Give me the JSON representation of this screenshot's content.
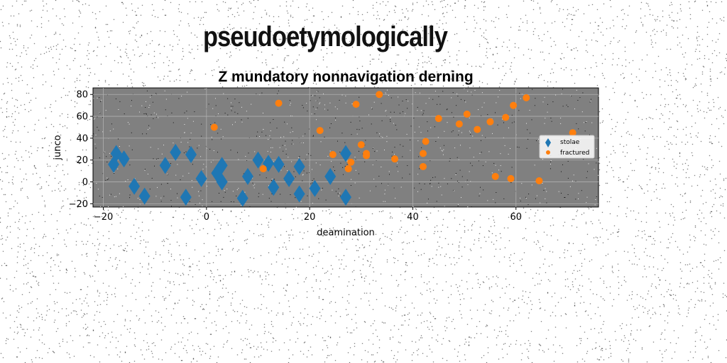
{
  "figure_title": "pseudoetymologically",
  "chart_data": {
    "type": "scatter",
    "title": "Z mundatory nonnavigation derning",
    "xlabel": "deamination",
    "ylabel": "junco",
    "xlim": [
      -22,
      76
    ],
    "ylim": [
      -23,
      86
    ],
    "xticks": [
      -20,
      0,
      20,
      40,
      60
    ],
    "yticks": [
      -20,
      0,
      20,
      40,
      60,
      80
    ],
    "grid": true,
    "legend_position": "right",
    "plot_background": "#808080",
    "series": [
      {
        "name": "stolae",
        "marker": "diamond",
        "color": "#1f77b4",
        "points": [
          {
            "x": -17.5,
            "y": 26
          },
          {
            "x": -18,
            "y": 16
          },
          {
            "x": -16,
            "y": 21
          },
          {
            "x": -14,
            "y": -4
          },
          {
            "x": -12,
            "y": -13
          },
          {
            "x": -8,
            "y": 15
          },
          {
            "x": -6,
            "y": 27
          },
          {
            "x": -4,
            "y": -14
          },
          {
            "x": -3,
            "y": 25
          },
          {
            "x": -1,
            "y": 3
          },
          {
            "x": 2,
            "y": 8
          },
          {
            "x": 3,
            "y": 15
          },
          {
            "x": 3,
            "y": 0
          },
          {
            "x": 7,
            "y": -15
          },
          {
            "x": 8,
            "y": 5
          },
          {
            "x": 10,
            "y": 20
          },
          {
            "x": 12,
            "y": 17
          },
          {
            "x": 13,
            "y": -5
          },
          {
            "x": 14,
            "y": 16
          },
          {
            "x": 16,
            "y": 3
          },
          {
            "x": 18,
            "y": 14
          },
          {
            "x": 18,
            "y": -11
          },
          {
            "x": 21,
            "y": -6
          },
          {
            "x": 24,
            "y": 5
          },
          {
            "x": 27,
            "y": 26
          },
          {
            "x": 27,
            "y": -14
          }
        ]
      },
      {
        "name": "fractured",
        "marker": "circle",
        "color": "#ff7f0e",
        "points": [
          {
            "x": 1.5,
            "y": 50
          },
          {
            "x": 11,
            "y": 12
          },
          {
            "x": 14,
            "y": 72
          },
          {
            "x": 22,
            "y": 47
          },
          {
            "x": 24.5,
            "y": 25
          },
          {
            "x": 27.5,
            "y": 12
          },
          {
            "x": 28,
            "y": 18
          },
          {
            "x": 29,
            "y": 71
          },
          {
            "x": 30,
            "y": 34
          },
          {
            "x": 31,
            "y": 24
          },
          {
            "x": 31,
            "y": 26
          },
          {
            "x": 33.5,
            "y": 80
          },
          {
            "x": 36.5,
            "y": 21
          },
          {
            "x": 42,
            "y": 26
          },
          {
            "x": 42,
            "y": 14
          },
          {
            "x": 42.5,
            "y": 37
          },
          {
            "x": 45,
            "y": 58
          },
          {
            "x": 49,
            "y": 53
          },
          {
            "x": 50.5,
            "y": 62
          },
          {
            "x": 52.5,
            "y": 48
          },
          {
            "x": 55,
            "y": 55
          },
          {
            "x": 56,
            "y": 5
          },
          {
            "x": 58,
            "y": 59
          },
          {
            "x": 59,
            "y": 3
          },
          {
            "x": 59.5,
            "y": 70
          },
          {
            "x": 62,
            "y": 77
          },
          {
            "x": 64.5,
            "y": 1
          },
          {
            "x": 71,
            "y": 45
          }
        ]
      }
    ]
  }
}
